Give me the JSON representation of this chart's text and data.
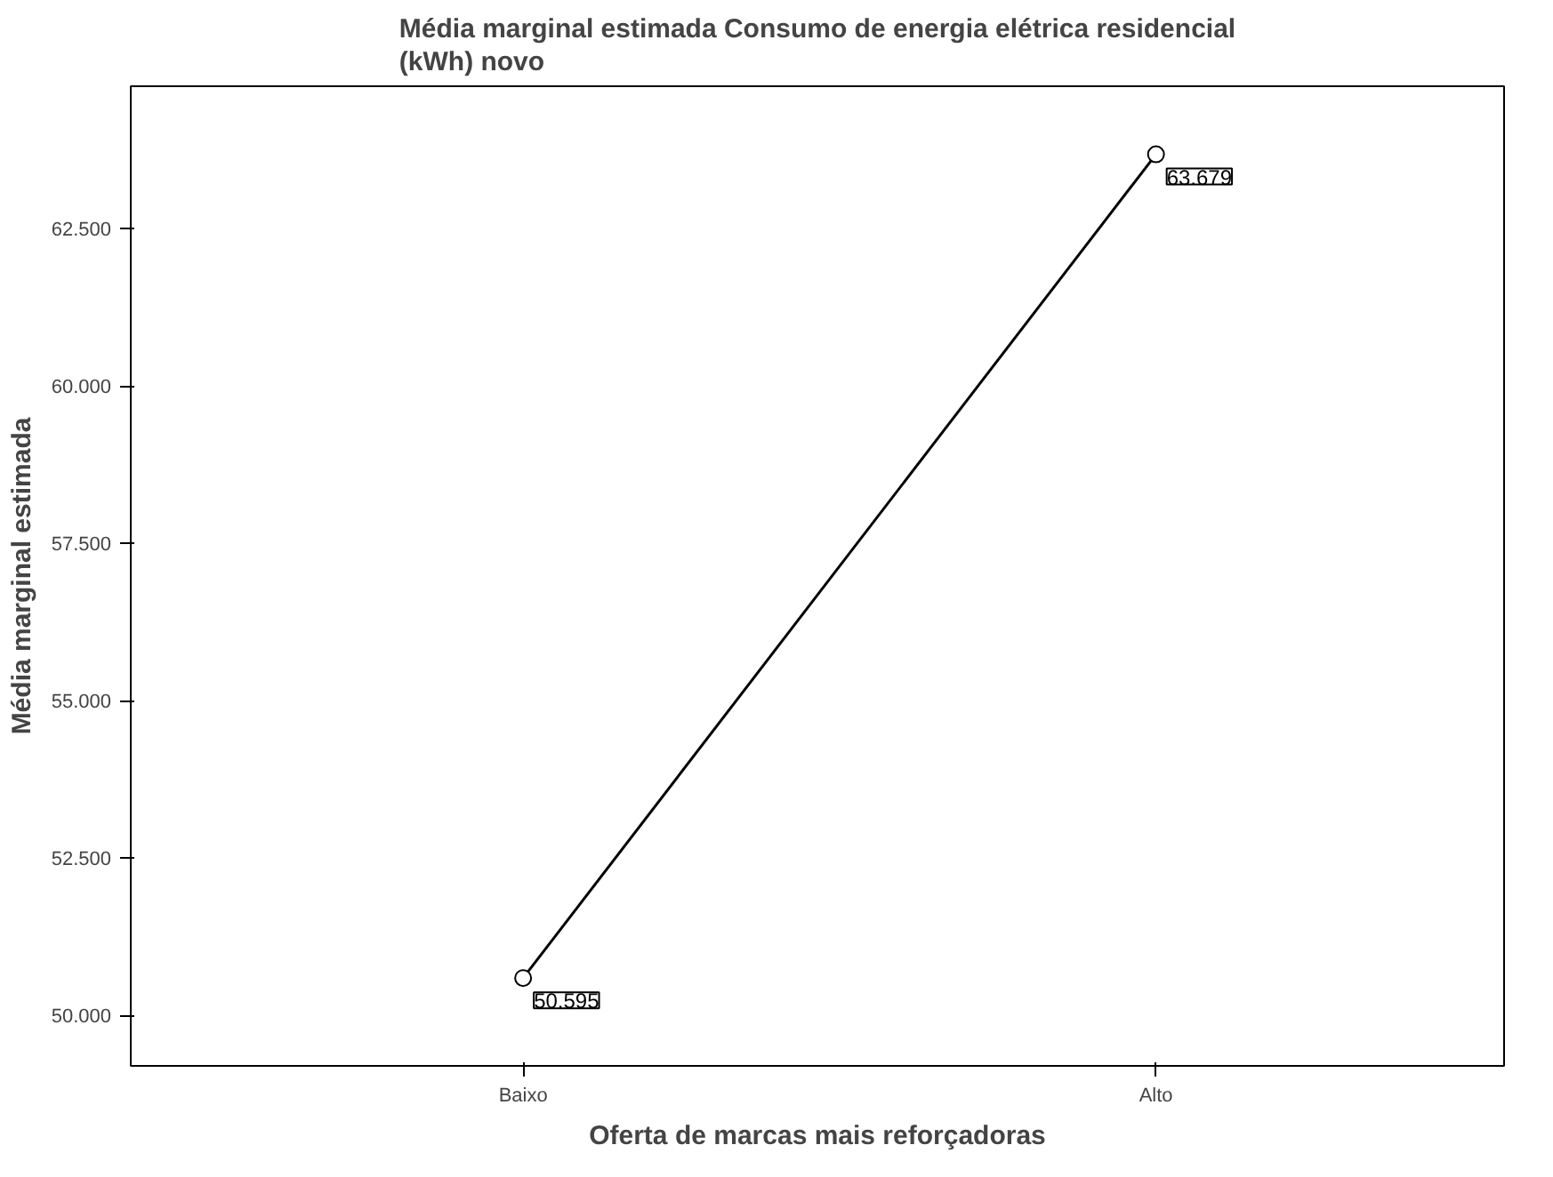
{
  "chart_data": {
    "type": "line",
    "title": "Média marginal estimada Consumo de energia elétrica residencial\n(kWh) novo",
    "xlabel": "Oferta de marcas mais reforçadoras",
    "ylabel": "Média marginal estimada",
    "categories": [
      "Baixo",
      "Alto"
    ],
    "series": [
      {
        "color": "#000000",
        "values": [
          50595,
          63679
        ]
      }
    ],
    "value_labels": [
      "50.595",
      "63.679"
    ],
    "ylim": [
      49200,
      64760
    ],
    "yticks": [
      {
        "value": 50000,
        "label": "50.000"
      },
      {
        "value": 52500,
        "label": "52.500"
      },
      {
        "value": 55000,
        "label": "55.000"
      },
      {
        "value": 57500,
        "label": "57.500"
      },
      {
        "value": 60000,
        "label": "60.000"
      },
      {
        "value": 62500,
        "label": "62.500"
      }
    ],
    "grid": false,
    "marker": "circle",
    "line_style": "solid"
  }
}
